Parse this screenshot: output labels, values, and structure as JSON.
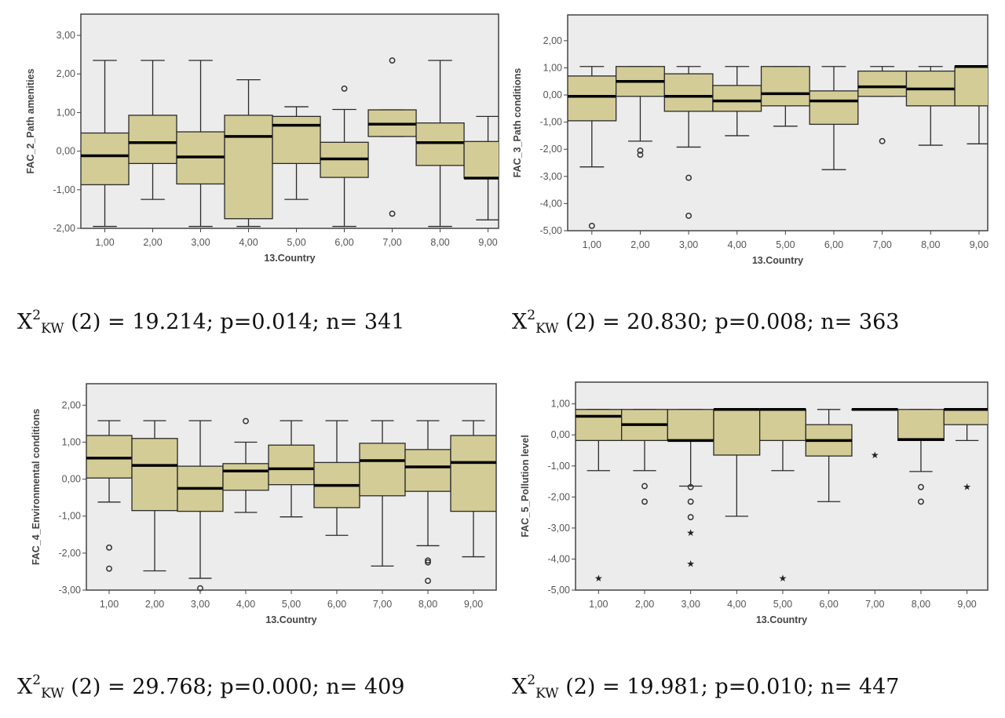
{
  "colors": {
    "box_fill": "#d3cc96",
    "plot_bg": "#ececec",
    "line": "#2a2a2a",
    "median": "#000000"
  },
  "chart_data": [
    {
      "type": "boxplot",
      "ylabel": "FAC_2_Path amenities",
      "xlabel": "13.Country",
      "categories": [
        "1,00",
        "2,00",
        "3,00",
        "4,00",
        "5,00",
        "6,00",
        "7,00",
        "8,00",
        "9,00"
      ],
      "yticks": [
        "3,00",
        "2,00",
        "1,00",
        "0,00",
        "-1,00",
        "-2,00"
      ],
      "ytick_values": [
        3,
        2,
        1,
        0,
        -1,
        -2
      ],
      "ylim": [
        -2,
        3.55
      ],
      "xlim": [
        0.5,
        9.22
      ],
      "grid": false,
      "boxes": [
        {
          "min": -1.95,
          "q1": -0.87,
          "median": -0.12,
          "q3": 0.47,
          "max": 2.35,
          "outliers": [],
          "extremes": []
        },
        {
          "min": -1.25,
          "q1": -0.32,
          "median": 0.22,
          "q3": 0.93,
          "max": 2.35,
          "outliers": [],
          "extremes": []
        },
        {
          "min": -1.95,
          "q1": -0.85,
          "median": -0.15,
          "q3": 0.5,
          "max": 2.35,
          "outliers": [],
          "extremes": []
        },
        {
          "min": -1.95,
          "q1": -1.75,
          "median": 0.38,
          "q3": 0.93,
          "max": 1.85,
          "outliers": [],
          "extremes": []
        },
        {
          "min": -1.25,
          "q1": -0.32,
          "median": 0.67,
          "q3": 0.9,
          "max": 1.15,
          "outliers": [],
          "extremes": []
        },
        {
          "min": -1.95,
          "q1": -0.68,
          "median": -0.2,
          "q3": 0.23,
          "max": 1.08,
          "outliers": [
            1.62
          ],
          "extremes": []
        },
        {
          "min": 0.38,
          "q1": 0.38,
          "median": 0.7,
          "q3": 1.07,
          "max": 1.07,
          "outliers": [
            2.35,
            -1.62
          ],
          "extremes": []
        },
        {
          "min": -1.95,
          "q1": -0.37,
          "median": 0.22,
          "q3": 0.73,
          "max": 2.35,
          "outliers": [],
          "extremes": []
        },
        {
          "min": -1.78,
          "q1": -0.7,
          "median": -0.7,
          "q3": 0.25,
          "max": 0.9,
          "outliers": [],
          "extremes": []
        }
      ]
    },
    {
      "type": "boxplot",
      "ylabel": "FAC_3_Path conditions",
      "xlabel": "13.Country",
      "categories": [
        "1,00",
        "2,00",
        "3,00",
        "4,00",
        "5,00",
        "6,00",
        "7,00",
        "8,00",
        "9,00"
      ],
      "yticks": [
        "2,00",
        "1,00",
        "0,00",
        "-1,00",
        "-2,00",
        "-3,00",
        "-4,00",
        "-5,00"
      ],
      "ytick_values": [
        2,
        1,
        0,
        -1,
        -2,
        -3,
        -4,
        -5
      ],
      "ylim": [
        -5,
        2.95
      ],
      "xlim": [
        0.5,
        9.18
      ],
      "grid": false,
      "boxes": [
        {
          "min": -2.65,
          "q1": -0.95,
          "median": -0.05,
          "q3": 0.7,
          "max": 1.05,
          "outliers": [
            -4.82
          ],
          "extremes": []
        },
        {
          "min": -1.7,
          "q1": -0.05,
          "median": 0.5,
          "q3": 1.05,
          "max": 1.05,
          "outliers": [
            -2.05,
            -2.2
          ],
          "extremes": []
        },
        {
          "min": -1.92,
          "q1": -0.6,
          "median": -0.05,
          "q3": 0.78,
          "max": 1.05,
          "outliers": [
            -3.05,
            -4.45
          ],
          "extremes": []
        },
        {
          "min": -1.5,
          "q1": -0.6,
          "median": -0.22,
          "q3": 0.35,
          "max": 1.05,
          "outliers": [],
          "extremes": []
        },
        {
          "min": -1.15,
          "q1": -0.4,
          "median": 0.05,
          "q3": 1.05,
          "max": 1.05,
          "outliers": [],
          "extremes": []
        },
        {
          "min": -2.75,
          "q1": -1.08,
          "median": -0.22,
          "q3": 0.15,
          "max": 1.05,
          "outliers": [],
          "extremes": []
        },
        {
          "min": -0.05,
          "q1": -0.05,
          "median": 0.3,
          "q3": 0.88,
          "max": 1.05,
          "outliers": [
            -1.7
          ],
          "extremes": []
        },
        {
          "min": -1.85,
          "q1": -0.4,
          "median": 0.22,
          "q3": 0.88,
          "max": 1.05,
          "outliers": [],
          "extremes": []
        },
        {
          "min": -1.8,
          "q1": -0.4,
          "median": 1.05,
          "q3": 1.05,
          "max": 1.05,
          "outliers": [],
          "extremes": []
        }
      ]
    },
    {
      "type": "boxplot",
      "ylabel": "FAC_4_Environmental conditions",
      "xlabel": "13.Country",
      "categories": [
        "1,00",
        "2,00",
        "3,00",
        "4,00",
        "5,00",
        "6,00",
        "7,00",
        "8,00",
        "9,00"
      ],
      "yticks": [
        "2,00",
        "1,00",
        "0,00",
        "-1,00",
        "-2,00",
        "-3,00"
      ],
      "ytick_values": [
        2,
        1,
        0,
        -1,
        -2,
        -3
      ],
      "ylim": [
        -3,
        2.58
      ],
      "xlim": [
        0.5,
        9.5
      ],
      "grid": false,
      "boxes": [
        {
          "min": -0.62,
          "q1": 0.03,
          "median": 0.57,
          "q3": 1.18,
          "max": 1.58,
          "outliers": [
            -1.85,
            -2.42
          ],
          "extremes": []
        },
        {
          "min": -2.48,
          "q1": -0.85,
          "median": 0.37,
          "q3": 1.1,
          "max": 1.58,
          "outliers": [],
          "extremes": []
        },
        {
          "min": -2.68,
          "q1": -0.87,
          "median": -0.25,
          "q3": 0.35,
          "max": 1.58,
          "outliers": [
            -2.95
          ],
          "extremes": []
        },
        {
          "min": -0.9,
          "q1": -0.3,
          "median": 0.22,
          "q3": 0.42,
          "max": 1.0,
          "outliers": [
            1.57
          ],
          "extremes": []
        },
        {
          "min": -1.02,
          "q1": -0.15,
          "median": 0.28,
          "q3": 0.92,
          "max": 1.58,
          "outliers": [],
          "extremes": []
        },
        {
          "min": -1.52,
          "q1": -0.77,
          "median": -0.17,
          "q3": 0.45,
          "max": 1.58,
          "outliers": [],
          "extremes": []
        },
        {
          "min": -2.35,
          "q1": -0.45,
          "median": 0.5,
          "q3": 0.97,
          "max": 1.58,
          "outliers": [],
          "extremes": []
        },
        {
          "min": -1.8,
          "q1": -0.33,
          "median": 0.33,
          "q3": 0.8,
          "max": 1.58,
          "outliers": [
            -2.2,
            -2.25,
            -2.75
          ],
          "extremes": []
        },
        {
          "min": -2.1,
          "q1": -0.87,
          "median": 0.45,
          "q3": 1.18,
          "max": 1.58,
          "outliers": [],
          "extremes": []
        }
      ]
    },
    {
      "type": "boxplot",
      "ylabel": "FAC_5_Pollution level",
      "xlabel": "13.Country",
      "categories": [
        "1,00",
        "2,00",
        "3,00",
        "4,00",
        "5,00",
        "6,00",
        "7,00",
        "8,00",
        "9,00"
      ],
      "yticks": [
        "1,00",
        "0,00",
        "-1,00",
        "-2,00",
        "-3,00",
        "-4,00",
        "-5,00"
      ],
      "ytick_values": [
        1,
        0,
        -1,
        -2,
        -3,
        -4,
        -5
      ],
      "ylim": [
        -5,
        1.7
      ],
      "xlim": [
        0.5,
        9.45
      ],
      "grid": false,
      "boxes": [
        {
          "min": -1.15,
          "q1": -0.18,
          "median": 0.6,
          "q3": 0.82,
          "max": 0.82,
          "outliers": [],
          "extremes": [
            -4.62
          ]
        },
        {
          "min": -1.15,
          "q1": -0.18,
          "median": 0.33,
          "q3": 0.82,
          "max": 0.82,
          "outliers": [
            -1.65,
            -2.15
          ],
          "extremes": []
        },
        {
          "min": -1.65,
          "q1": -0.18,
          "median": -0.18,
          "q3": 0.82,
          "max": 0.82,
          "outliers": [
            -1.68,
            -2.15,
            -2.65
          ],
          "extremes": [
            -3.15,
            -4.15
          ]
        },
        {
          "min": -2.62,
          "q1": -0.65,
          "median": 0.82,
          "q3": 0.82,
          "max": 0.82,
          "outliers": [],
          "extremes": []
        },
        {
          "min": -1.15,
          "q1": -0.18,
          "median": 0.82,
          "q3": 0.82,
          "max": 0.82,
          "outliers": [],
          "extremes": [
            -4.62
          ]
        },
        {
          "min": -2.15,
          "q1": -0.68,
          "median": -0.18,
          "q3": 0.33,
          "max": 0.82,
          "outliers": [],
          "extremes": []
        },
        {
          "min": 0.82,
          "q1": 0.82,
          "median": 0.82,
          "q3": 0.82,
          "max": 0.82,
          "outliers": [],
          "extremes": [
            -0.65
          ]
        },
        {
          "min": -1.18,
          "q1": -0.18,
          "median": -0.15,
          "q3": 0.82,
          "max": 0.82,
          "outliers": [
            -1.68,
            -2.15
          ],
          "extremes": []
        },
        {
          "min": -0.18,
          "q1": 0.33,
          "median": 0.82,
          "q3": 0.82,
          "max": 0.82,
          "outliers": [],
          "extremes": [
            -1.68
          ]
        }
      ]
    }
  ],
  "stats": [
    {
      "symbol": "X",
      "sup": "2",
      "sub": "KW",
      "text": " (2) = 19.214; p=0.014; n= 341"
    },
    {
      "symbol": "X",
      "sup": "2",
      "sub": "KW",
      "text": " (2) = 20.830; p=0.008; n= 363"
    },
    {
      "symbol": "X",
      "sup": "2",
      "sub": "KW",
      "text": " (2) = 29.768; p=0.000; n= 409"
    },
    {
      "symbol": "X",
      "sup": "2",
      "sub": "KW",
      "text": " (2) = 19.981; p=0.010; n= 447"
    }
  ]
}
